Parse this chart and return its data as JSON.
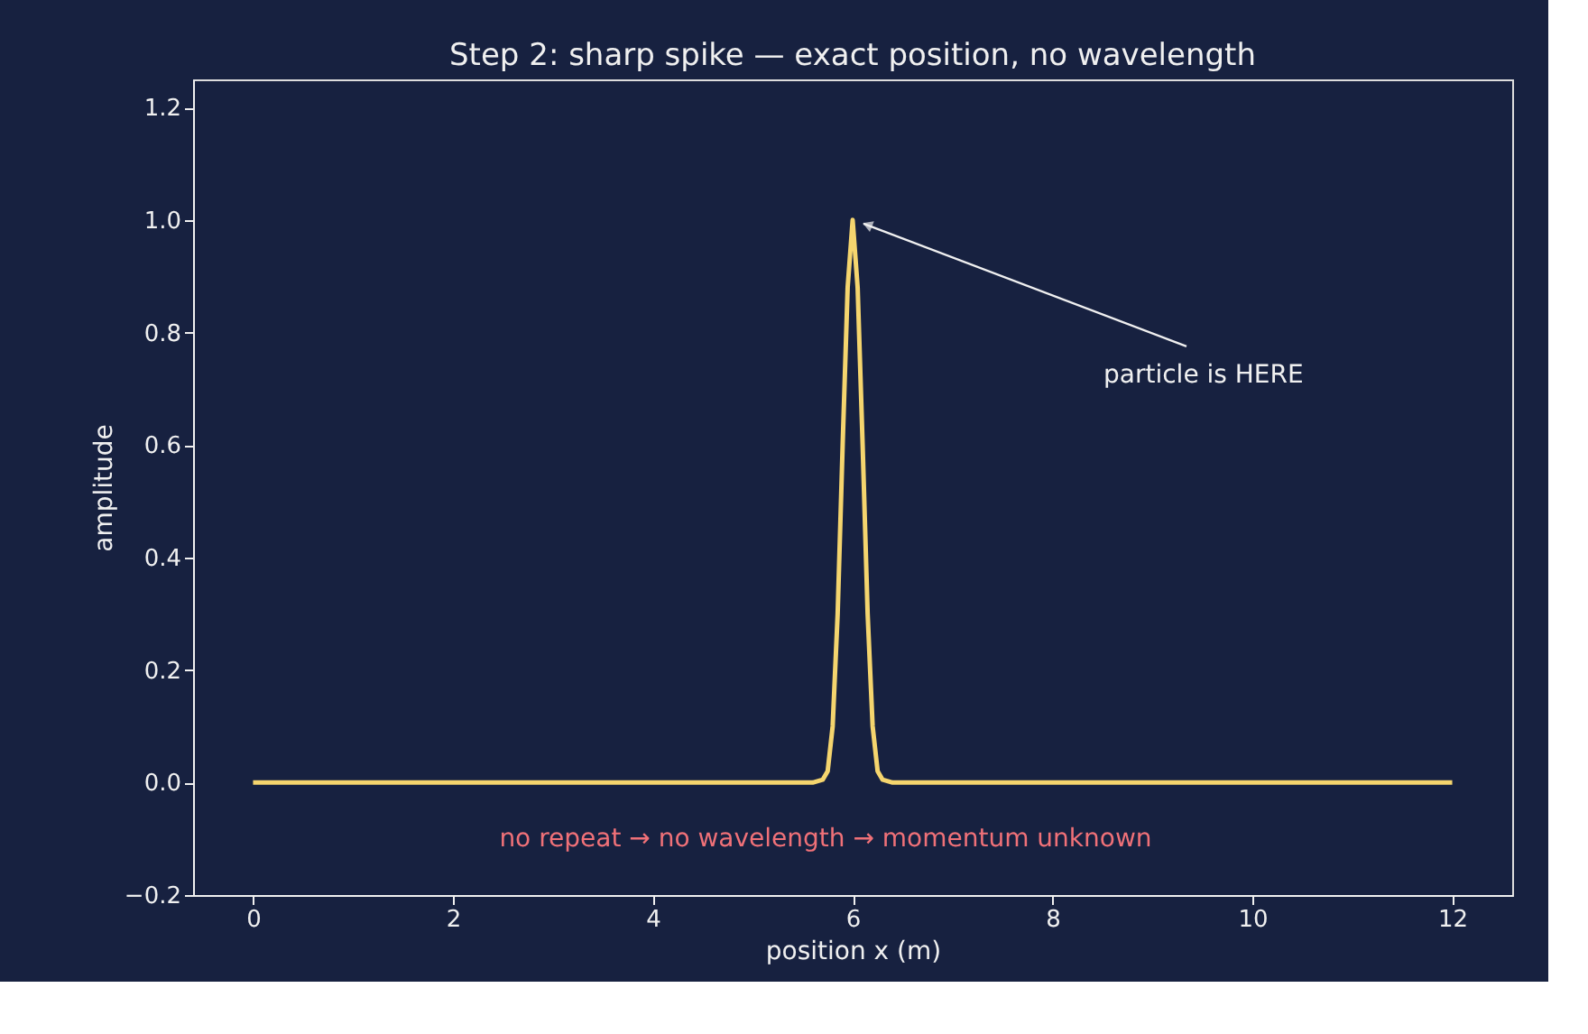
{
  "chart_data": {
    "type": "line",
    "title": "Step 2: sharp spike — exact position, no wavelength",
    "xlabel": "position x (m)",
    "ylabel": "amplitude",
    "x": [
      0,
      2,
      4,
      5.6,
      5.7,
      5.75,
      5.8,
      5.85,
      5.9,
      5.95,
      6,
      6.05,
      6.1,
      6.15,
      6.2,
      6.25,
      6.3,
      6.4,
      8,
      10,
      12
    ],
    "series": [
      {
        "color": "#f5d56e",
        "values": [
          0,
          0,
          0,
          0,
          0.005,
          0.02,
          0.1,
          0.3,
          0.6,
          0.88,
          1,
          0.88,
          0.6,
          0.3,
          0.1,
          0.02,
          0.005,
          0,
          0,
          0,
          0
        ]
      }
    ],
    "xlim": [
      -0.6,
      12.6
    ],
    "ylim": [
      -0.2,
      1.25
    ],
    "xticks": [
      0,
      2,
      4,
      6,
      8,
      10,
      12
    ],
    "yticks": [
      {
        "value": -0.2,
        "label": "−0.2"
      },
      {
        "value": 0,
        "label": "0.0"
      },
      {
        "value": 0.2,
        "label": "0.2"
      },
      {
        "value": 0.4,
        "label": "0.4"
      },
      {
        "value": 0.6,
        "label": "0.6"
      },
      {
        "value": 0.8,
        "label": "0.8"
      },
      {
        "value": 1,
        "label": "1.0"
      },
      {
        "value": 1.2,
        "label": "1.2"
      }
    ],
    "annotations": [
      {
        "text": "particle is HERE",
        "x": 6,
        "y": 1
      },
      "no repeat → no wavelength → momentum unknown"
    ],
    "grid": false,
    "marker": "none",
    "line_style": "solid"
  }
}
